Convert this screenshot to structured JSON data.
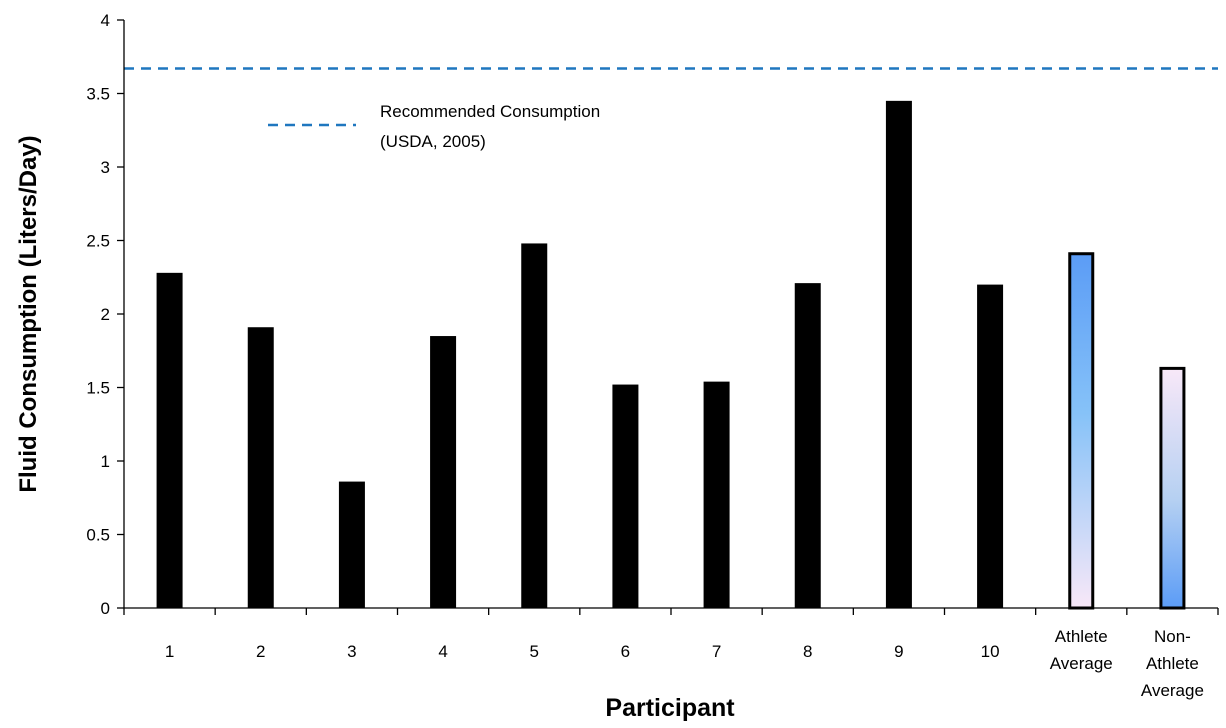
{
  "chart_data": {
    "type": "bar",
    "title": "",
    "xlabel": "Participant",
    "ylabel": "Fluid Consumption  (Liters/Day)",
    "ylim": [
      0,
      4
    ],
    "yticks": [
      "0",
      "0.5",
      "1",
      "1.5",
      "2",
      "2.5",
      "3",
      "3.5",
      "4"
    ],
    "ytick_values": [
      0,
      0.5,
      1,
      1.5,
      2,
      2.5,
      3,
      3.5,
      4
    ],
    "categories": [
      [
        "1"
      ],
      [
        "2"
      ],
      [
        "3"
      ],
      [
        "4"
      ],
      [
        "5"
      ],
      [
        "6"
      ],
      [
        "7"
      ],
      [
        "8"
      ],
      [
        "9"
      ],
      [
        "10"
      ],
      [
        "Athlete",
        "Average"
      ],
      [
        "Non-",
        "Athlete",
        "Average"
      ]
    ],
    "values": [
      2.28,
      1.91,
      0.86,
      1.85,
      2.48,
      1.52,
      1.54,
      2.21,
      3.45,
      2.2,
      2.41,
      1.63
    ],
    "bar_styles": [
      "solid",
      "solid",
      "solid",
      "solid",
      "solid",
      "solid",
      "solid",
      "solid",
      "solid",
      "solid",
      "gradient-blue-top",
      "gradient-blue-bottom"
    ],
    "reference_line": {
      "value": 3.67,
      "style": "dashed",
      "label_lines": [
        "Recommended Consumption",
        "(USDA, 2005)"
      ]
    },
    "legend_position": "top-left",
    "grid": false,
    "colors": {
      "bar": "#000000",
      "reference_line": "#1f77bf",
      "gradient_blue": "#5b9cf6",
      "gradient_light": "#f8e8f8",
      "axis": "#000000"
    }
  }
}
